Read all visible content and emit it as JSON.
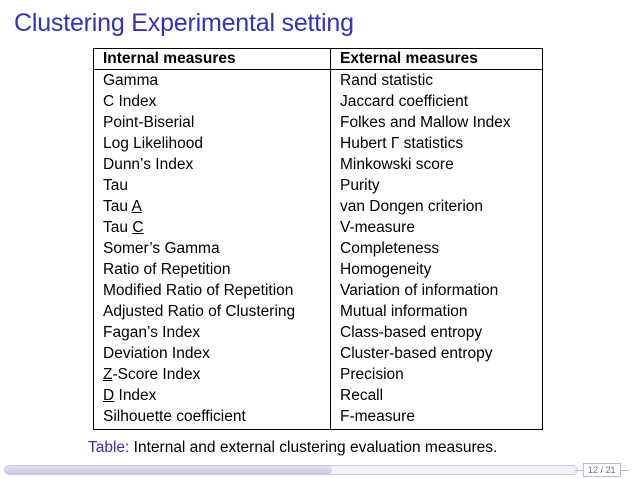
{
  "slide": {
    "title": "Clustering Experimental setting"
  },
  "table": {
    "headers": [
      "Internal measures",
      "External measures"
    ],
    "rows": [
      {
        "internal": "Gamma",
        "external": "Rand statistic"
      },
      {
        "internal": "C Index",
        "external": "Jaccard coefficient"
      },
      {
        "internal": "Point-Biserial",
        "external": "Folkes and Mallow Index"
      },
      {
        "internal": "Log Likelihood",
        "external": "Hubert Γ statistics"
      },
      {
        "internal": "Dunn’s Index",
        "external": "Minkowski score"
      },
      {
        "internal": "Tau",
        "external": "Purity"
      },
      {
        "internal_prefix": "Tau ",
        "internal_underlined": "A",
        "external": "van Dongen criterion"
      },
      {
        "internal_prefix": "Tau ",
        "internal_underlined": "C",
        "external": "V-measure"
      },
      {
        "internal": "Somer’s Gamma",
        "external": "Completeness"
      },
      {
        "internal": "Ratio of Repetition",
        "external": "Homogeneity"
      },
      {
        "internal": "Modified Ratio of Repetition",
        "external": "Variation of information"
      },
      {
        "internal": "Adjusted Ratio of Clustering",
        "external": "Mutual information"
      },
      {
        "internal": "Fagan’s Index",
        "external": "Class-based entropy"
      },
      {
        "internal": "Deviation Index",
        "external": "Cluster-based entropy"
      },
      {
        "internal_underlined": "Z",
        "internal_suffix": "-Score Index",
        "external": "Precision"
      },
      {
        "internal_underlined": "D",
        "internal_suffix": " Index",
        "external": "Recall"
      },
      {
        "internal": "Silhouette coefficient",
        "external": "F-measure"
      }
    ]
  },
  "caption": {
    "label": "Table:",
    "text": " Internal and external clustering evaluation measures."
  },
  "navigation": {
    "page_counter": "12 / 21",
    "progress": 0.571
  },
  "colors": {
    "title": "#3333b3",
    "caption_label": "#3333b3"
  }
}
